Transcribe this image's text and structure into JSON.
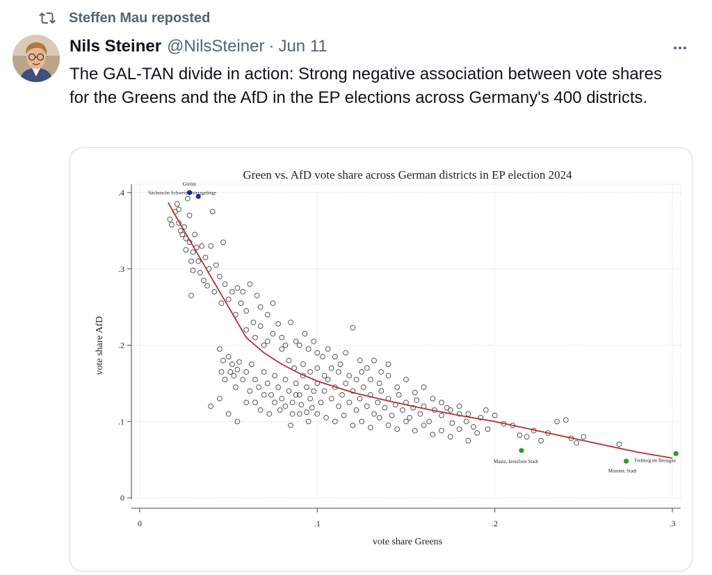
{
  "repost": {
    "label": "Steffen Mau reposted",
    "icon": "repost-icon"
  },
  "author": {
    "name": "Nils Steiner",
    "handle": "@NilsSteiner",
    "separator": "·",
    "date": "Jun 11"
  },
  "more_icon": "more-icon",
  "tweet": {
    "text": "The GAL-TAN divide in action: Strong negative association between vote shares for the Greens and the AfD in the EP elections across Germany's 400 districts."
  },
  "colors": {
    "fit_line": "#b03030",
    "highlight_high": "#1b2ea8",
    "highlight_low": "#2e9a2e",
    "muted_text": "#536471"
  },
  "chart_data": {
    "type": "scatter",
    "title": "Green vs. AfD vote share across German districts in EP election 2024",
    "xlabel": "vote share Greens",
    "ylabel": "vote share AfD",
    "xlim": [
      0,
      0.3
    ],
    "ylim": [
      0,
      0.4
    ],
    "x_ticks": [
      0,
      0.1,
      0.2,
      0.3
    ],
    "x_tick_labels": [
      "0",
      ".1",
      ".2",
      ".3"
    ],
    "y_ticks": [
      0,
      0.1,
      0.2,
      0.3,
      0.4
    ],
    "y_tick_labels": [
      "0",
      ".1",
      ".2",
      ".3",
      ".4"
    ],
    "grid": true,
    "fit_line": [
      [
        0.016,
        0.387
      ],
      [
        0.02,
        0.37
      ],
      [
        0.03,
        0.33
      ],
      [
        0.04,
        0.29
      ],
      [
        0.05,
        0.25
      ],
      [
        0.06,
        0.21
      ],
      [
        0.07,
        0.19
      ],
      [
        0.08,
        0.175
      ],
      [
        0.09,
        0.163
      ],
      [
        0.1,
        0.153
      ],
      [
        0.12,
        0.138
      ],
      [
        0.14,
        0.127
      ],
      [
        0.16,
        0.117
      ],
      [
        0.18,
        0.108
      ],
      [
        0.2,
        0.1
      ],
      [
        0.22,
        0.09
      ],
      [
        0.24,
        0.08
      ],
      [
        0.26,
        0.07
      ],
      [
        0.28,
        0.06
      ],
      [
        0.3,
        0.052
      ]
    ],
    "highlighted": [
      {
        "label": "Görlitz",
        "x": 0.028,
        "y": 0.4,
        "group": "high"
      },
      {
        "label": "Sächsische Schweiz-Osterzgebirge",
        "x": 0.033,
        "y": 0.395,
        "group": "high"
      },
      {
        "label": "Mainz, kreisfreie Stadt",
        "x": 0.215,
        "y": 0.062,
        "group": "low"
      },
      {
        "label": "Münster, Stadt",
        "x": 0.274,
        "y": 0.048,
        "group": "low"
      },
      {
        "label": "Freiburg im Breisgau",
        "x": 0.302,
        "y": 0.058,
        "group": "low"
      }
    ],
    "points": [
      [
        0.017,
        0.365
      ],
      [
        0.018,
        0.358
      ],
      [
        0.02,
        0.375
      ],
      [
        0.021,
        0.385
      ],
      [
        0.022,
        0.378
      ],
      [
        0.022,
        0.36
      ],
      [
        0.023,
        0.35
      ],
      [
        0.024,
        0.345
      ],
      [
        0.025,
        0.355
      ],
      [
        0.026,
        0.34
      ],
      [
        0.026,
        0.325
      ],
      [
        0.027,
        0.392
      ],
      [
        0.028,
        0.37
      ],
      [
        0.028,
        0.335
      ],
      [
        0.029,
        0.31
      ],
      [
        0.03,
        0.322
      ],
      [
        0.03,
        0.298
      ],
      [
        0.031,
        0.345
      ],
      [
        0.032,
        0.328
      ],
      [
        0.033,
        0.31
      ],
      [
        0.034,
        0.295
      ],
      [
        0.035,
        0.33
      ],
      [
        0.036,
        0.285
      ],
      [
        0.037,
        0.315
      ],
      [
        0.038,
        0.278
      ],
      [
        0.039,
        0.3
      ],
      [
        0.04,
        0.33
      ],
      [
        0.041,
        0.375
      ],
      [
        0.042,
        0.27
      ],
      [
        0.043,
        0.305
      ],
      [
        0.045,
        0.29
      ],
      [
        0.046,
        0.255
      ],
      [
        0.047,
        0.335
      ],
      [
        0.048,
        0.28
      ],
      [
        0.05,
        0.26
      ],
      [
        0.052,
        0.27
      ],
      [
        0.054,
        0.24
      ],
      [
        0.055,
        0.275
      ],
      [
        0.057,
        0.255
      ],
      [
        0.058,
        0.27
      ],
      [
        0.06,
        0.245
      ],
      [
        0.062,
        0.28
      ],
      [
        0.064,
        0.23
      ],
      [
        0.066,
        0.265
      ],
      [
        0.068,
        0.25
      ],
      [
        0.07,
        0.2
      ],
      [
        0.072,
        0.24
      ],
      [
        0.075,
        0.255
      ],
      [
        0.078,
        0.228
      ],
      [
        0.08,
        0.21
      ],
      [
        0.029,
        0.265
      ],
      [
        0.06,
        0.22
      ],
      [
        0.065,
        0.21
      ],
      [
        0.068,
        0.225
      ],
      [
        0.072,
        0.205
      ],
      [
        0.075,
        0.215
      ],
      [
        0.08,
        0.195
      ],
      [
        0.082,
        0.2
      ],
      [
        0.085,
        0.23
      ],
      [
        0.088,
        0.205
      ],
      [
        0.09,
        0.2
      ],
      [
        0.093,
        0.215
      ],
      [
        0.095,
        0.195
      ],
      [
        0.098,
        0.205
      ],
      [
        0.1,
        0.19
      ],
      [
        0.103,
        0.185
      ],
      [
        0.106,
        0.195
      ],
      [
        0.11,
        0.185
      ],
      [
        0.113,
        0.175
      ],
      [
        0.116,
        0.19
      ],
      [
        0.12,
        0.223
      ],
      [
        0.124,
        0.18
      ],
      [
        0.128,
        0.17
      ],
      [
        0.132,
        0.18
      ],
      [
        0.136,
        0.165
      ],
      [
        0.14,
        0.175
      ],
      [
        0.045,
        0.195
      ],
      [
        0.046,
        0.165
      ],
      [
        0.047,
        0.18
      ],
      [
        0.048,
        0.155
      ],
      [
        0.05,
        0.185
      ],
      [
        0.051,
        0.165
      ],
      [
        0.052,
        0.175
      ],
      [
        0.053,
        0.16
      ],
      [
        0.054,
        0.145
      ],
      [
        0.055,
        0.168
      ],
      [
        0.056,
        0.178
      ],
      [
        0.058,
        0.155
      ],
      [
        0.06,
        0.165
      ],
      [
        0.062,
        0.14
      ],
      [
        0.063,
        0.175
      ],
      [
        0.065,
        0.155
      ],
      [
        0.067,
        0.145
      ],
      [
        0.07,
        0.165
      ],
      [
        0.072,
        0.15
      ],
      [
        0.074,
        0.135
      ],
      [
        0.076,
        0.16
      ],
      [
        0.078,
        0.145
      ],
      [
        0.08,
        0.13
      ],
      [
        0.082,
        0.155
      ],
      [
        0.084,
        0.14
      ],
      [
        0.086,
        0.125
      ],
      [
        0.088,
        0.15
      ],
      [
        0.09,
        0.135
      ],
      [
        0.092,
        0.16
      ],
      [
        0.094,
        0.145
      ],
      [
        0.096,
        0.13
      ],
      [
        0.098,
        0.14
      ],
      [
        0.1,
        0.15
      ],
      [
        0.102,
        0.125
      ],
      [
        0.104,
        0.14
      ],
      [
        0.106,
        0.155
      ],
      [
        0.108,
        0.13
      ],
      [
        0.11,
        0.145
      ],
      [
        0.112,
        0.12
      ],
      [
        0.114,
        0.135
      ],
      [
        0.116,
        0.15
      ],
      [
        0.118,
        0.125
      ],
      [
        0.12,
        0.14
      ],
      [
        0.122,
        0.115
      ],
      [
        0.124,
        0.13
      ],
      [
        0.126,
        0.145
      ],
      [
        0.128,
        0.12
      ],
      [
        0.13,
        0.135
      ],
      [
        0.132,
        0.11
      ],
      [
        0.134,
        0.125
      ],
      [
        0.136,
        0.14
      ],
      [
        0.138,
        0.118
      ],
      [
        0.14,
        0.13
      ],
      [
        0.142,
        0.108
      ],
      [
        0.144,
        0.122
      ],
      [
        0.146,
        0.135
      ],
      [
        0.148,
        0.115
      ],
      [
        0.15,
        0.125
      ],
      [
        0.152,
        0.105
      ],
      [
        0.154,
        0.118
      ],
      [
        0.156,
        0.128
      ],
      [
        0.158,
        0.11
      ],
      [
        0.16,
        0.12
      ],
      [
        0.163,
        0.1
      ],
      [
        0.166,
        0.115
      ],
      [
        0.17,
        0.108
      ],
      [
        0.173,
        0.118
      ],
      [
        0.176,
        0.098
      ],
      [
        0.18,
        0.11
      ],
      [
        0.184,
        0.1
      ],
      [
        0.188,
        0.093
      ],
      [
        0.192,
        0.105
      ],
      [
        0.196,
        0.09
      ],
      [
        0.2,
        0.108
      ],
      [
        0.205,
        0.097
      ],
      [
        0.21,
        0.095
      ],
      [
        0.214,
        0.082
      ],
      [
        0.218,
        0.08
      ],
      [
        0.222,
        0.088
      ],
      [
        0.226,
        0.075
      ],
      [
        0.23,
        0.085
      ],
      [
        0.235,
        0.1
      ],
      [
        0.24,
        0.102
      ],
      [
        0.243,
        0.078
      ],
      [
        0.246,
        0.072
      ],
      [
        0.25,
        0.08
      ],
      [
        0.27,
        0.07
      ],
      [
        0.085,
        0.095
      ],
      [
        0.09,
        0.11
      ],
      [
        0.095,
        0.1
      ],
      [
        0.1,
        0.11
      ],
      [
        0.105,
        0.105
      ],
      [
        0.11,
        0.1
      ],
      [
        0.115,
        0.108
      ],
      [
        0.12,
        0.095
      ],
      [
        0.125,
        0.1
      ],
      [
        0.13,
        0.092
      ],
      [
        0.135,
        0.105
      ],
      [
        0.14,
        0.095
      ],
      [
        0.145,
        0.09
      ],
      [
        0.15,
        0.1
      ],
      [
        0.155,
        0.088
      ],
      [
        0.16,
        0.095
      ],
      [
        0.165,
        0.083
      ],
      [
        0.17,
        0.088
      ],
      [
        0.175,
        0.08
      ],
      [
        0.18,
        0.09
      ],
      [
        0.185,
        0.075
      ],
      [
        0.19,
        0.085
      ],
      [
        0.065,
        0.125
      ],
      [
        0.068,
        0.115
      ],
      [
        0.07,
        0.135
      ],
      [
        0.073,
        0.11
      ],
      [
        0.076,
        0.125
      ],
      [
        0.079,
        0.115
      ],
      [
        0.082,
        0.12
      ],
      [
        0.086,
        0.11
      ],
      [
        0.088,
        0.135
      ],
      [
        0.091,
        0.122
      ],
      [
        0.094,
        0.112
      ],
      [
        0.097,
        0.118
      ],
      [
        0.04,
        0.12
      ],
      [
        0.045,
        0.13
      ],
      [
        0.05,
        0.11
      ],
      [
        0.055,
        0.1
      ],
      [
        0.06,
        0.125
      ],
      [
        0.16,
        0.145
      ],
      [
        0.165,
        0.13
      ],
      [
        0.17,
        0.125
      ],
      [
        0.175,
        0.115
      ],
      [
        0.18,
        0.12
      ],
      [
        0.185,
        0.11
      ],
      [
        0.195,
        0.115
      ],
      [
        0.125,
        0.165
      ],
      [
        0.13,
        0.155
      ],
      [
        0.135,
        0.15
      ],
      [
        0.14,
        0.16
      ],
      [
        0.145,
        0.145
      ],
      [
        0.15,
        0.155
      ],
      [
        0.155,
        0.138
      ],
      [
        0.108,
        0.17
      ],
      [
        0.112,
        0.165
      ],
      [
        0.118,
        0.16
      ],
      [
        0.122,
        0.155
      ],
      [
        0.084,
        0.18
      ],
      [
        0.087,
        0.17
      ],
      [
        0.092,
        0.175
      ],
      [
        0.096,
        0.165
      ],
      [
        0.1,
        0.17
      ],
      [
        0.104,
        0.16
      ]
    ]
  }
}
